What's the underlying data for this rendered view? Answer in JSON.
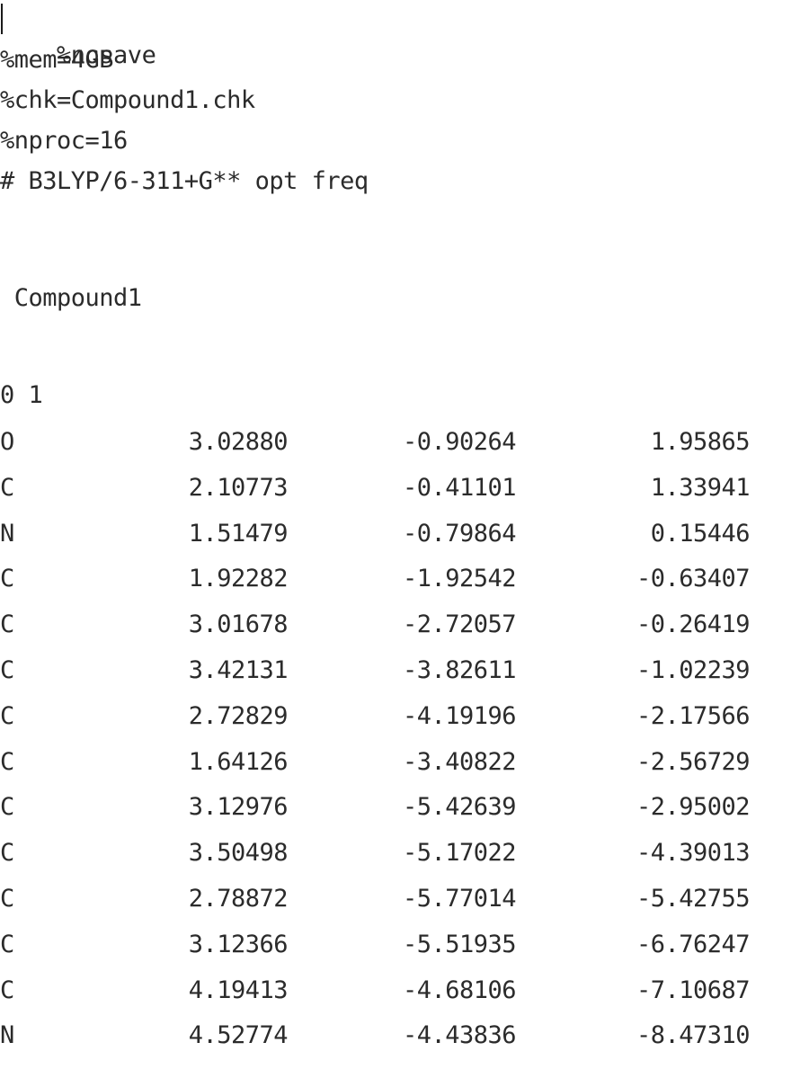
{
  "header_lines": [
    "%nosave",
    "%mem=4GB",
    "%chk=Compound1.chk",
    "%nproc=16",
    "# B3LYP/6-311+G** opt freq"
  ],
  "title_line": " Compound1",
  "charge_multiplicity": "0 1",
  "atoms": [
    {
      "element": "O",
      "x": "3.02880",
      "y": "-0.90264",
      "z": "1.95865"
    },
    {
      "element": "C",
      "x": "2.10773",
      "y": "-0.41101",
      "z": "1.33941"
    },
    {
      "element": "N",
      "x": "1.51479",
      "y": "-0.79864",
      "z": "0.15446"
    },
    {
      "element": "C",
      "x": "1.92282",
      "y": "-1.92542",
      "z": "-0.63407"
    },
    {
      "element": "C",
      "x": "3.01678",
      "y": "-2.72057",
      "z": "-0.26419"
    },
    {
      "element": "C",
      "x": "3.42131",
      "y": "-3.82611",
      "z": "-1.02239"
    },
    {
      "element": "C",
      "x": "2.72829",
      "y": "-4.19196",
      "z": "-2.17566"
    },
    {
      "element": "C",
      "x": "1.64126",
      "y": "-3.40822",
      "z": "-2.56729"
    },
    {
      "element": "C",
      "x": "3.12976",
      "y": "-5.42639",
      "z": "-2.95002"
    },
    {
      "element": "C",
      "x": "3.50498",
      "y": "-5.17022",
      "z": "-4.39013"
    },
    {
      "element": "C",
      "x": "2.78872",
      "y": "-5.77014",
      "z": "-5.42755"
    },
    {
      "element": "C",
      "x": "3.12366",
      "y": "-5.51935",
      "z": "-6.76247"
    },
    {
      "element": "C",
      "x": "4.19413",
      "y": "-4.68106",
      "z": "-7.10687"
    },
    {
      "element": "N",
      "x": "4.52774",
      "y": "-4.43836",
      "z": "-8.47310"
    }
  ]
}
